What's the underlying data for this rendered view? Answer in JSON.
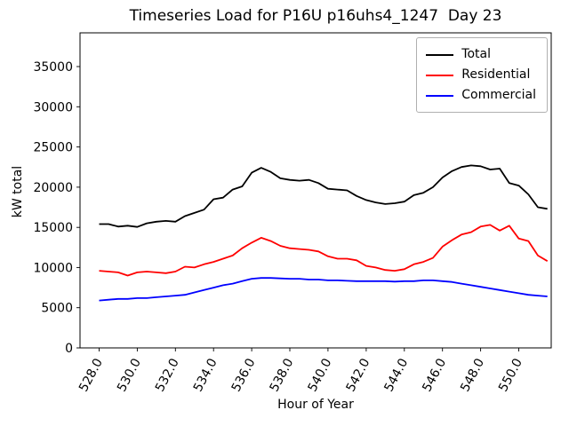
{
  "chart_data": {
    "type": "line",
    "title": "Timeseries Load for P16U p16uhs4_1247  Day 23",
    "xlabel": "Hour of Year",
    "ylabel": "kW total",
    "xlim": [
      527.0,
      551.7
    ],
    "ylim": [
      0,
      39200
    ],
    "xticks": [
      528,
      530,
      532,
      534,
      536,
      538,
      540,
      542,
      544,
      546,
      548,
      550
    ],
    "xtick_labels": [
      "528.0",
      "530.0",
      "532.0",
      "534.0",
      "536.0",
      "538.0",
      "540.0",
      "542.0",
      "544.0",
      "546.0",
      "548.0",
      "550.0"
    ],
    "yticks": [
      0,
      5000,
      10000,
      15000,
      20000,
      25000,
      30000,
      35000
    ],
    "legend_position": "upper right",
    "grid": false,
    "x": [
      528.0,
      528.5,
      529.0,
      529.5,
      530.0,
      530.5,
      531.0,
      531.5,
      532.0,
      532.5,
      533.0,
      533.5,
      534.0,
      534.5,
      535.0,
      535.5,
      536.0,
      536.5,
      537.0,
      537.5,
      538.0,
      538.5,
      539.0,
      539.5,
      540.0,
      540.5,
      541.0,
      541.5,
      542.0,
      542.5,
      543.0,
      543.5,
      544.0,
      544.5,
      545.0,
      545.5,
      546.0,
      546.5,
      547.0,
      547.5,
      548.0,
      548.5,
      549.0,
      549.5,
      550.0,
      550.5,
      551.0,
      551.5
    ],
    "series": [
      {
        "name": "Total",
        "color": "#000000",
        "values": [
          15400,
          15400,
          15100,
          15200,
          15050,
          15500,
          15700,
          15800,
          15700,
          16400,
          16800,
          17200,
          18500,
          18700,
          19700,
          20100,
          21800,
          22400,
          21900,
          21100,
          20900,
          20800,
          20900,
          20500,
          19800,
          19700,
          19600,
          18900,
          18400,
          18100,
          17900,
          18000,
          18200,
          19000,
          19300,
          20000,
          21200,
          22000,
          22500,
          22700,
          22600,
          22200,
          22300,
          20500,
          20200,
          19100,
          17500,
          17300
        ]
      },
      {
        "name": "Residential",
        "color": "#ff0000",
        "values": [
          9600,
          9500,
          9400,
          9000,
          9400,
          9500,
          9400,
          9300,
          9500,
          10100,
          10000,
          10400,
          10700,
          11100,
          11500,
          12400,
          13100,
          13700,
          13300,
          12700,
          12400,
          12300,
          12200,
          12000,
          11400,
          11100,
          11100,
          10900,
          10200,
          10000,
          9700,
          9600,
          9800,
          10400,
          10700,
          11200,
          12600,
          13400,
          14100,
          14400,
          15100,
          15300,
          14600,
          15200,
          13600,
          13300,
          11500,
          10800
        ]
      },
      {
        "name": "Commercial",
        "color": "#0000ff",
        "values": [
          5900,
          6000,
          6100,
          6100,
          6200,
          6200,
          6300,
          6400,
          6500,
          6600,
          6900,
          7200,
          7500,
          7800,
          8000,
          8300,
          8600,
          8700,
          8700,
          8650,
          8600,
          8600,
          8500,
          8500,
          8400,
          8400,
          8350,
          8300,
          8300,
          8300,
          8300,
          8250,
          8300,
          8300,
          8400,
          8400,
          8300,
          8200,
          8000,
          7800,
          7600,
          7400,
          7200,
          7000,
          6800,
          6600,
          6500,
          6400
        ]
      }
    ]
  }
}
